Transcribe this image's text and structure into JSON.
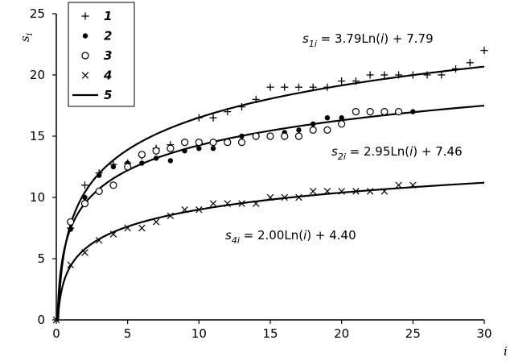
{
  "chart_data": {
    "type": "scatter",
    "title": "",
    "xlabel": "i",
    "ylabel": "s_i",
    "xlim": [
      0,
      30
    ],
    "ylim": [
      0,
      25
    ],
    "x_ticks": [
      0,
      5,
      10,
      15,
      20,
      25,
      30
    ],
    "y_ticks": [
      0,
      5,
      10,
      15,
      20,
      25
    ],
    "grid": false,
    "legend_position": "top-left",
    "series": [
      {
        "name": "1",
        "marker": "plus",
        "x": [
          1,
          2,
          3,
          4,
          5,
          6,
          7,
          8,
          9,
          10,
          11,
          12,
          13,
          14,
          15,
          16,
          17,
          18,
          19,
          20,
          21,
          22,
          23,
          24,
          25,
          26,
          27,
          28,
          29,
          30
        ],
        "y": [
          7.5,
          11,
          12,
          12.7,
          12.8,
          13.4,
          14,
          14.3,
          14.5,
          16.5,
          16.5,
          17,
          17.4,
          18,
          19,
          19,
          19,
          19,
          19,
          19.5,
          19.5,
          20,
          20,
          20,
          20,
          20,
          20,
          20.5,
          21,
          22
        ]
      },
      {
        "name": "2",
        "marker": "filled-circle",
        "x": [
          1,
          2,
          3,
          4,
          5,
          6,
          7,
          8,
          9,
          10,
          11,
          12,
          13,
          14,
          15,
          16,
          17,
          18,
          19,
          20,
          21,
          22,
          23,
          24,
          25
        ],
        "y": [
          7.4,
          10,
          11.8,
          12.5,
          12.8,
          12.8,
          13.2,
          13,
          13.8,
          14,
          14,
          14.5,
          15,
          15,
          15,
          15.3,
          15.5,
          16,
          16.5,
          16.5,
          17,
          17,
          17,
          17,
          17
        ]
      },
      {
        "name": "3",
        "marker": "open-circle",
        "x": [
          1,
          2,
          3,
          4,
          5,
          6,
          7,
          8,
          9,
          10,
          11,
          12,
          13,
          14,
          15,
          16,
          17,
          18,
          19,
          20,
          21,
          22,
          23,
          24
        ],
        "y": [
          8,
          9.5,
          10.5,
          11,
          12.5,
          13.5,
          13.8,
          14,
          14.5,
          14.5,
          14.5,
          14.5,
          14.5,
          15,
          15,
          15,
          15,
          15.5,
          15.5,
          16,
          17,
          17,
          17,
          17
        ]
      },
      {
        "name": "4",
        "marker": "cross",
        "x": [
          0,
          1,
          2,
          3,
          4,
          5,
          6,
          7,
          8,
          9,
          10,
          11,
          12,
          13,
          14,
          15,
          16,
          17,
          18,
          19,
          20,
          21,
          22,
          23,
          24,
          25
        ],
        "y": [
          0,
          4.5,
          5.5,
          6.5,
          7,
          7.5,
          7.5,
          8,
          8.5,
          9,
          9,
          9.5,
          9.5,
          9.5,
          9.5,
          10,
          10,
          10,
          10.5,
          10.5,
          10.5,
          10.5,
          10.5,
          10.5,
          11,
          11
        ]
      }
    ],
    "fits": [
      {
        "legend_name": "5",
        "a": 3.79,
        "b": 7.79
      },
      {
        "legend_name": "5",
        "a": 2.95,
        "b": 7.46
      },
      {
        "legend_name": "5",
        "a": 2.0,
        "b": 4.4
      }
    ],
    "equations": [
      {
        "lhs": "s",
        "sub": "1",
        "sub_i": "i",
        "rhs_a": " = 3.79Ln(",
        "rhs_i": "i",
        "rhs_b": ") + 7.79"
      },
      {
        "lhs": "s",
        "sub": "2",
        "sub_i": "i",
        "rhs_a": " = 2.95Ln(",
        "rhs_i": "i",
        "rhs_b": ") + 7.46"
      },
      {
        "lhs": "s",
        "sub": "4",
        "sub_i": "i",
        "rhs_a": " = 2.00Ln(",
        "rhs_i": "i",
        "rhs_b": ") + 4.40"
      }
    ],
    "legend": [
      "1",
      "2",
      "3",
      "4",
      "5"
    ]
  }
}
